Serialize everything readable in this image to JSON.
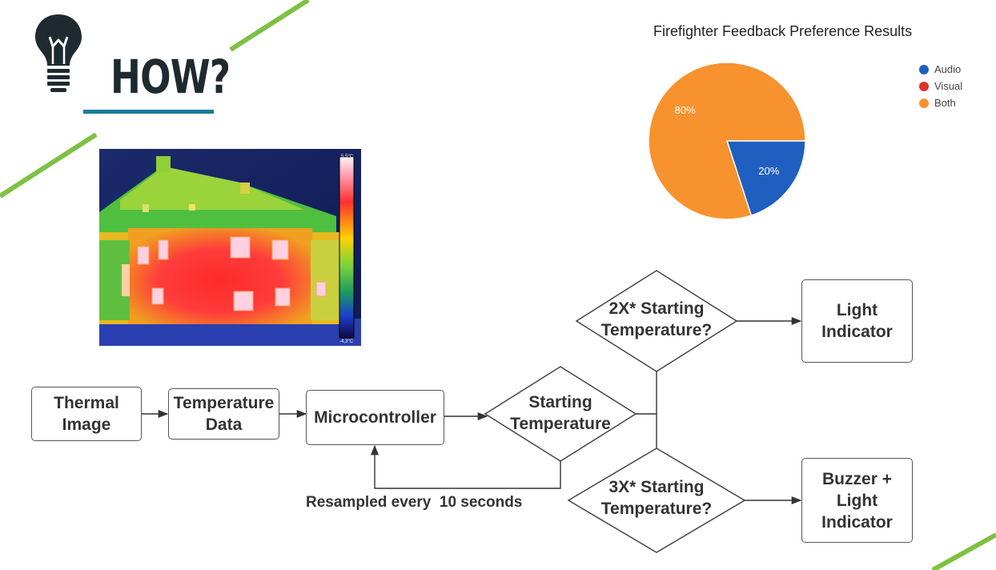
{
  "slide": {
    "title": "HOW?",
    "accent_color": "#1a7a9a",
    "stripe_color": "#7dc142",
    "icon": "lightbulb-icon"
  },
  "chart_data": {
    "type": "pie",
    "title": "Firefighter Feedback Preference Results",
    "legend_position": "right",
    "series": [
      {
        "name": "Audio",
        "value": 20,
        "label": "20%",
        "color": "#1f5fbf"
      },
      {
        "name": "Visual",
        "value": 0,
        "label": "",
        "color": "#d83327"
      },
      {
        "name": "Both",
        "value": 80,
        "label": "80%",
        "color": "#f7922e"
      }
    ]
  },
  "thermal_image": {
    "scale_max": "5,5°C",
    "scale_min": "-4,3°C"
  },
  "flowchart": {
    "thermal_image": "Thermal\nImage",
    "temperature_data": "Temperature\nData",
    "microcontroller": "Microcontroller",
    "starting_temperature": "Starting\nTemperature",
    "check_2x": "2X* Starting\nTemperature?",
    "check_3x": "3X* Starting\nTemperature?",
    "light_indicator": "Light\nIndicator",
    "buzzer_light_indicator": "Buzzer +\nLight\nIndicator",
    "resample_note": "Resampled every  10 seconds"
  }
}
